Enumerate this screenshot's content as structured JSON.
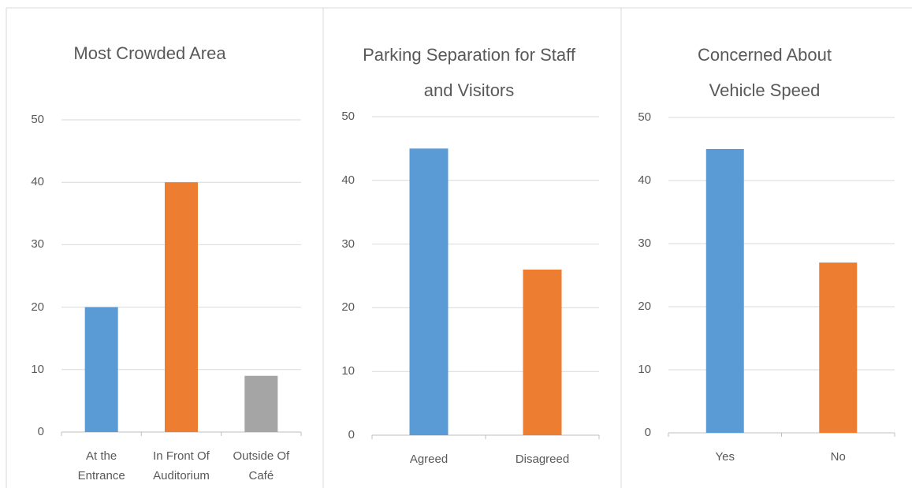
{
  "chart_data": [
    {
      "type": "bar",
      "title": "Most Crowded Area",
      "categories": [
        "At the Entrance",
        "In Front Of Auditorium",
        "Outside Of Café"
      ],
      "values": [
        20,
        40,
        9
      ],
      "colors": [
        "#5b9bd5",
        "#ed7d31",
        "#a5a5a5"
      ],
      "ylim": [
        0,
        50
      ],
      "yticks": [
        0,
        10,
        20,
        30,
        40,
        50
      ],
      "grid": true
    },
    {
      "type": "bar",
      "title": "Parking Separation for Staff and Visitors",
      "categories": [
        "Agreed",
        "Disagreed"
      ],
      "values": [
        45,
        26
      ],
      "colors": [
        "#5b9bd5",
        "#ed7d31"
      ],
      "ylim": [
        0,
        50
      ],
      "yticks": [
        0,
        10,
        20,
        30,
        40,
        50
      ],
      "grid": true
    },
    {
      "type": "bar",
      "title": "Concerned About Vehicle Speed",
      "categories": [
        "Yes",
        "No"
      ],
      "values": [
        45,
        27
      ],
      "colors": [
        "#5b9bd5",
        "#ed7d31"
      ],
      "ylim": [
        0,
        50
      ],
      "yticks": [
        0,
        10,
        20,
        30,
        40,
        50
      ],
      "grid": true
    }
  ]
}
